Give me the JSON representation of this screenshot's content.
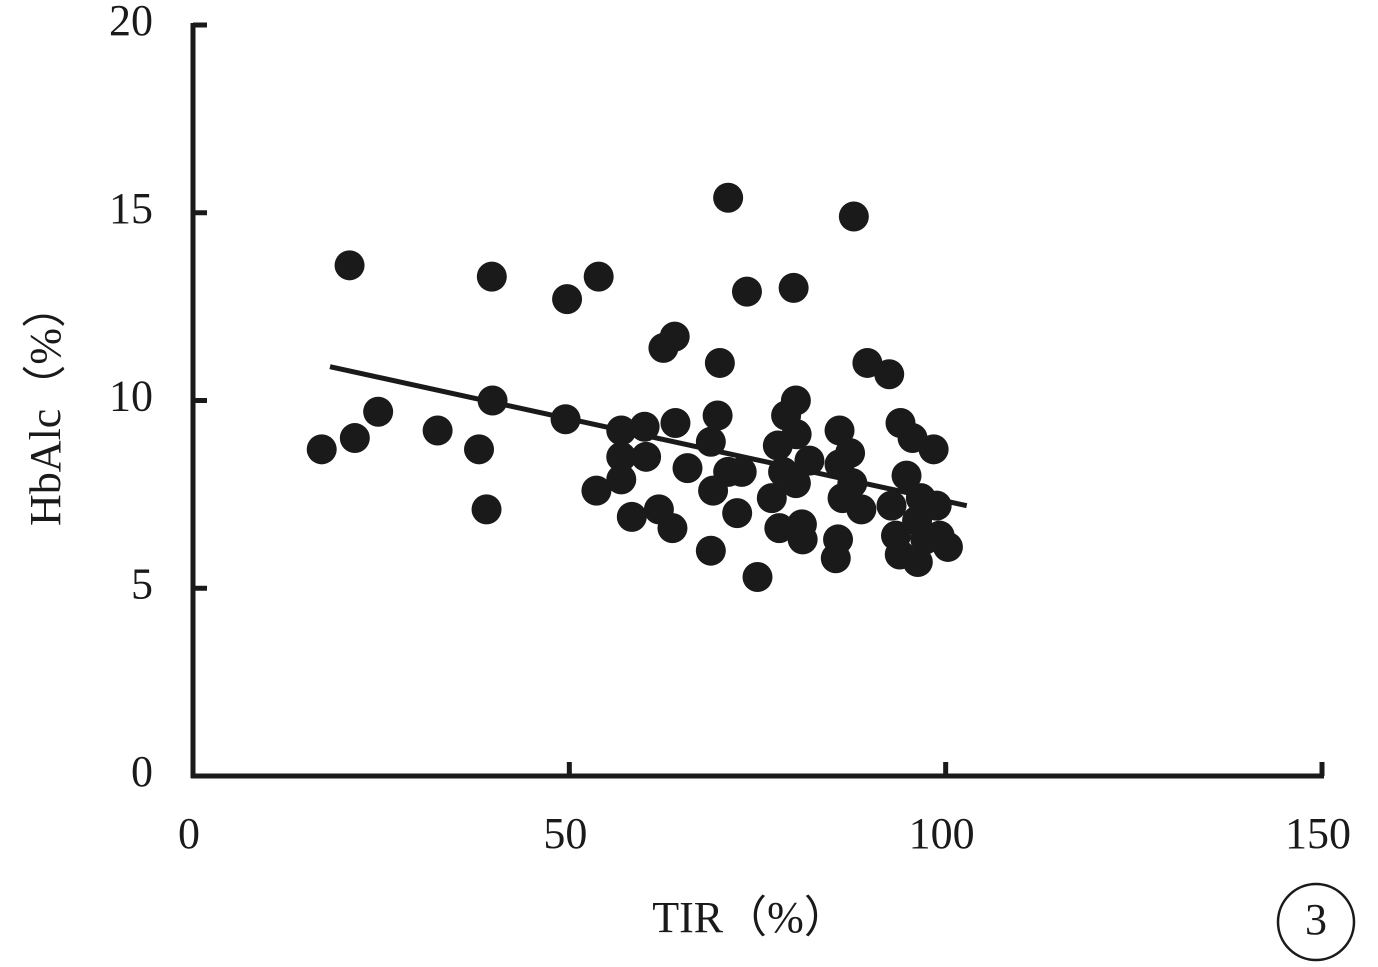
{
  "chart_data": {
    "type": "scatter",
    "xlabel": "TIR（%）",
    "ylabel": "HbAlc（%）",
    "panel_label": "3",
    "color": "#1a1a1a",
    "xlim": [
      0,
      150
    ],
    "xticks": [
      0,
      50,
      100,
      150
    ],
    "ylim": [
      0,
      20
    ],
    "yticks": [
      0,
      5,
      10,
      15,
      20
    ],
    "series": [
      {
        "name": "TIR",
        "color": "#1a1a1a",
        "x": [
          17.1,
          20.8,
          21.5,
          24.6,
          32.5,
          38.0,
          39.0,
          39.7,
          39.8,
          49.7,
          49.5,
          53.9,
          53.6,
          56.9,
          56.9,
          56.9,
          58.3,
          60.0,
          60.2,
          61.9,
          62.5,
          64.0,
          64.1,
          63.7,
          65.7,
          68.8,
          68.8,
          69.1,
          69.7,
          70.0,
          71.1,
          71.1,
          72.3,
          72.9,
          73.6,
          75.0,
          76.9,
          77.7,
          77.9,
          78.4,
          78.8,
          79.8,
          80.1,
          80.2,
          80.1,
          80.9,
          81.0,
          81.9,
          85.4,
          85.7,
          85.9,
          85.9,
          86.3,
          87.3,
          87.6,
          87.8,
          88.8,
          89.6,
          92.5,
          92.8,
          93.4,
          93.9,
          94.0,
          94.8,
          95.6,
          96.2,
          96.3,
          96.7,
          97.3,
          98.4,
          98.8,
          99.2,
          100.3
        ],
        "values": [
          8.7,
          13.6,
          9.0,
          9.7,
          9.2,
          8.7,
          7.1,
          13.3,
          10.0,
          12.7,
          9.5,
          13.3,
          7.6,
          9.2,
          8.5,
          7.9,
          6.9,
          9.3,
          8.5,
          7.1,
          11.4,
          11.7,
          9.4,
          6.6,
          8.2,
          6.0,
          8.9,
          7.6,
          9.6,
          11.0,
          15.4,
          8.1,
          7.0,
          8.1,
          12.9,
          5.3,
          7.4,
          8.8,
          6.6,
          8.1,
          9.6,
          13.0,
          10.0,
          9.1,
          7.8,
          6.7,
          6.3,
          8.4,
          5.8,
          6.3,
          9.2,
          8.3,
          7.4,
          8.6,
          7.8,
          14.9,
          7.1,
          11.0,
          10.7,
          7.2,
          6.4,
          5.9,
          9.4,
          8.0,
          9.0,
          6.8,
          5.7,
          7.4,
          6.3,
          8.7,
          7.2,
          6.4,
          6.1
        ]
      }
    ],
    "trendline": {
      "x": [
        18.2,
        102.8
      ],
      "values": [
        10.9,
        7.2
      ]
    }
  }
}
